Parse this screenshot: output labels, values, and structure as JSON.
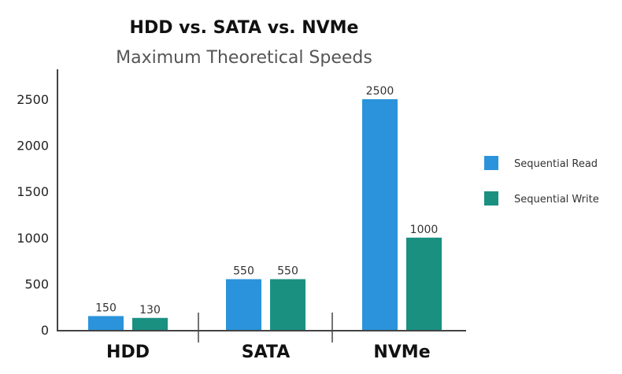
{
  "chart_data": {
    "type": "bar",
    "title": "HDD vs. SATA vs. NVMe",
    "subtitle": "Maximum Theoretical Speeds",
    "xlabel": "",
    "ylabel": "",
    "categories": [
      "HDD",
      "SATA",
      "NVMe"
    ],
    "series": [
      {
        "name": "Sequential Read",
        "values": [
          150,
          550,
          2500
        ],
        "color": "#2b93db"
      },
      {
        "name": "Sequential Write",
        "values": [
          130,
          550,
          1000
        ],
        "color": "#1a9081"
      }
    ],
    "data_labels": [
      [
        "150",
        "550",
        "2500"
      ],
      [
        "130",
        "550",
        "1000"
      ]
    ],
    "yticks": [
      0,
      500,
      1000,
      1500,
      2000,
      2500
    ],
    "ylim": [
      0,
      2500
    ],
    "grid": false,
    "legend_position": "right"
  }
}
